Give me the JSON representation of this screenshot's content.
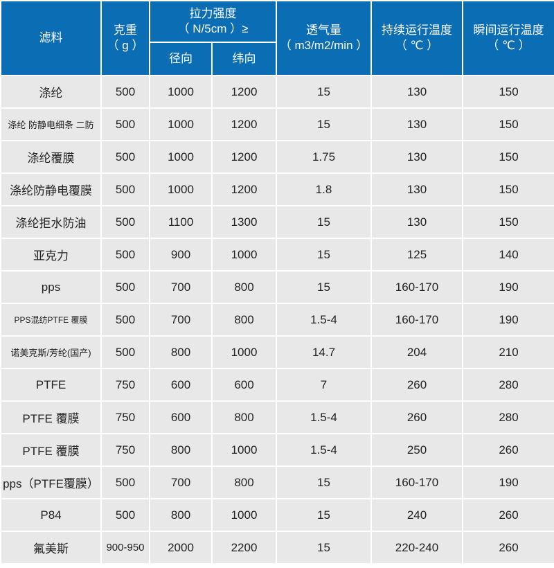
{
  "header": {
    "material": "滤料",
    "weight_line1": "克重",
    "weight_line2": "（ g ）",
    "tensile_line1": "拉力强度",
    "tensile_line2": "（ N/5cm ）≥",
    "radial": "径向",
    "weft": "纬向",
    "permeability_line1": "透气量",
    "permeability_line2": "（ m3/m2/min ）",
    "continuous_line1": "持续运行温度",
    "continuous_line2": "（ ℃ ）",
    "instant_line1": "瞬间运行温度",
    "instant_line2": "（ ℃ ）"
  },
  "rows": [
    {
      "name": "涤纶",
      "weight": "500",
      "radial": "1000",
      "weft": "1200",
      "perm": "15",
      "cont": "130",
      "inst": "150"
    },
    {
      "name": "涤纶 防静电细条 二防",
      "weight": "500",
      "radial": "1000",
      "weft": "1200",
      "perm": "15",
      "cont": "130",
      "inst": "150"
    },
    {
      "name": "涤纶覆膜",
      "weight": "500",
      "radial": "1000",
      "weft": "1200",
      "perm": "1.75",
      "cont": "130",
      "inst": "150"
    },
    {
      "name": "涤纶防静电覆膜",
      "weight": "500",
      "radial": "1000",
      "weft": "1200",
      "perm": "1.8",
      "cont": "130",
      "inst": "150"
    },
    {
      "name": "涤纶拒水防油",
      "weight": "500",
      "radial": "1100",
      "weft": "1300",
      "perm": "15",
      "cont": "130",
      "inst": "150"
    },
    {
      "name": "亚克力",
      "weight": "500",
      "radial": "900",
      "weft": "1000",
      "perm": "15",
      "cont": "125",
      "inst": "140"
    },
    {
      "name": "pps",
      "weight": "500",
      "radial": "700",
      "weft": "800",
      "perm": "15",
      "cont": "160-170",
      "inst": "190"
    },
    {
      "name": "PPS混纺PTFE 覆膜",
      "weight": "500",
      "radial": "700",
      "weft": "800",
      "perm": "1.5-4",
      "cont": "160-170",
      "inst": "190"
    },
    {
      "name": "诺美克斯/芳纶(国产)",
      "weight": "500",
      "radial": "800",
      "weft": "1000",
      "perm": "14.7",
      "cont": "204",
      "inst": "210"
    },
    {
      "name": "PTFE",
      "weight": "750",
      "radial": "600",
      "weft": "600",
      "perm": "7",
      "cont": "260",
      "inst": "280"
    },
    {
      "name": "PTFE 覆膜",
      "weight": "750",
      "radial": "600",
      "weft": "800",
      "perm": "1.5-4",
      "cont": "260",
      "inst": "280"
    },
    {
      "name": "PTFE 覆膜",
      "weight": "750",
      "radial": "800",
      "weft": "1000",
      "perm": "1.5-4",
      "cont": "250",
      "inst": "260"
    },
    {
      "name": "pps（PTFE覆膜）",
      "weight": "500",
      "radial": "700",
      "weft": "800",
      "perm": "15",
      "cont": "160-170",
      "inst": "190"
    },
    {
      "name": "P84",
      "weight": "500",
      "radial": "800",
      "weft": "1000",
      "perm": "15",
      "cont": "240",
      "inst": "260"
    },
    {
      "name": "氟美斯",
      "weight": "900-950",
      "radial": "2000",
      "weft": "2200",
      "perm": "15",
      "cont": "220-240",
      "inst": "260"
    }
  ]
}
